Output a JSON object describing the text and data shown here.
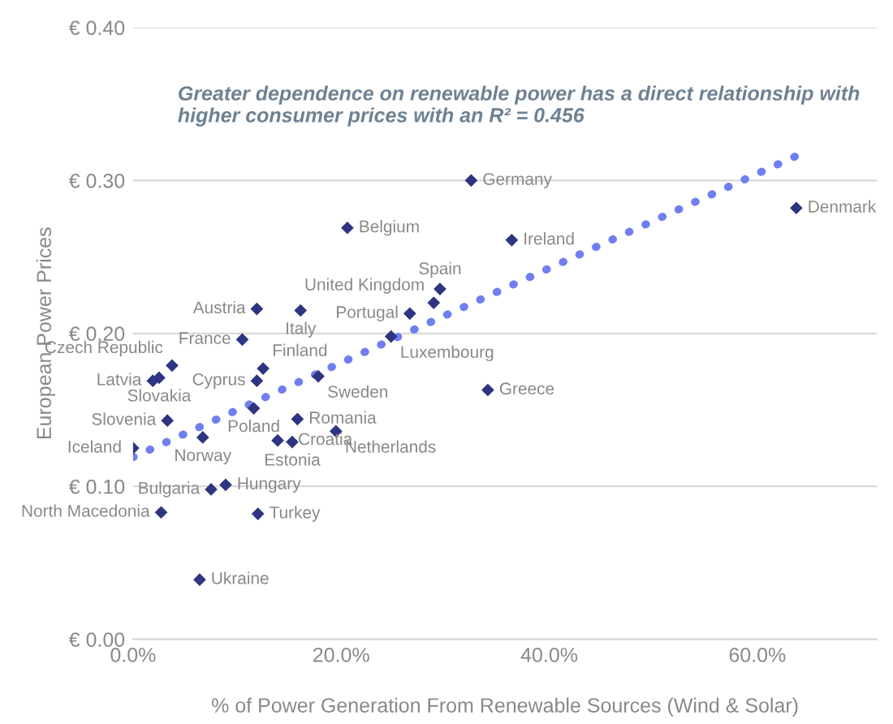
{
  "chart_data": {
    "type": "scatter",
    "xlabel": "% of Power Generation From Renewable Sources (Wind & Solar)",
    "ylabel": "European Power Prices",
    "annotations": [
      "Greater dependence on renewable power has a direct relationship with higher consumer prices with an R² = 0.456",
      {
        "text": "Germany",
        "x": 32.5,
        "y": 0.3
      },
      {
        "text": "Belgium",
        "x": 20.6,
        "y": 0.269
      },
      {
        "text": "Denmark",
        "x": 63.75,
        "y": 0.282
      },
      {
        "text": "Ireland",
        "x": 36.4,
        "y": 0.261
      },
      {
        "text": "Spain",
        "x": 29.5,
        "y": 0.229
      },
      {
        "text": "United Kingdom",
        "x": 28.9,
        "y": 0.22
      },
      {
        "text": "Portugal",
        "x": 26.6,
        "y": 0.213
      },
      {
        "text": "Luxembourg",
        "x": 24.8,
        "y": 0.198
      },
      {
        "text": "Austria",
        "x": 11.9,
        "y": 0.216
      },
      {
        "text": "Italy",
        "x": 16.1,
        "y": 0.215
      },
      {
        "text": "France",
        "x": 10.5,
        "y": 0.196
      },
      {
        "text": "Czech Republic",
        "x": 3.75,
        "y": 0.179
      },
      {
        "text": "Slovakia",
        "x": 2.5,
        "y": 0.171
      },
      {
        "text": "Finland",
        "x": 12.5,
        "y": 0.177
      },
      {
        "text": "Cyprus",
        "x": 11.9,
        "y": 0.169
      },
      {
        "text": "Sweden",
        "x": 17.8,
        "y": 0.172
      },
      {
        "text": "Greece",
        "x": 34.1,
        "y": 0.163
      },
      {
        "text": "Poland",
        "x": 11.6,
        "y": 0.151
      },
      {
        "text": "Slovenia",
        "x": 3.3,
        "y": 0.143
      },
      {
        "text": "Latvia",
        "x": 1.9,
        "y": 0.169
      },
      {
        "text": "Romania",
        "x": 15.8,
        "y": 0.144
      },
      {
        "text": "Norway",
        "x": 6.7,
        "y": 0.132
      },
      {
        "text": "Netherlands",
        "x": 19.5,
        "y": 0.136
      },
      {
        "text": "Estonia",
        "x": 15.3,
        "y": 0.129
      },
      {
        "text": "Croatia",
        "x": 13.9,
        "y": 0.13
      },
      {
        "text": "Iceland",
        "x": 0.0,
        "y": 0.125
      },
      {
        "text": "Hungary",
        "x": 8.9,
        "y": 0.101
      },
      {
        "text": "Bulgaria",
        "x": 7.5,
        "y": 0.098
      },
      {
        "text": "North Macedonia",
        "x": 2.7,
        "y": 0.083
      },
      {
        "text": "Turkey",
        "x": 12.0,
        "y": 0.082
      },
      {
        "text": "Ukraine",
        "x": 6.4,
        "y": 0.039
      }
    ],
    "series": [
      {
        "color": "#2e3580",
        "marker": "diamond",
        "x": [
          32.5,
          20.6,
          63.75,
          36.4,
          29.5,
          28.9,
          26.6,
          24.8,
          11.9,
          16.1,
          10.5,
          3.75,
          2.5,
          12.5,
          11.9,
          17.8,
          34.1,
          11.6,
          3.3,
          1.9,
          15.8,
          6.7,
          19.5,
          15.3,
          13.9,
          0.0,
          8.9,
          7.5,
          2.7,
          12.0,
          6.4
        ],
        "values": [
          0.3,
          0.269,
          0.282,
          0.261,
          0.229,
          0.22,
          0.213,
          0.198,
          0.216,
          0.215,
          0.196,
          0.179,
          0.171,
          0.177,
          0.169,
          0.172,
          0.163,
          0.151,
          0.143,
          0.169,
          0.144,
          0.132,
          0.136,
          0.129,
          0.13,
          0.125,
          0.101,
          0.098,
          0.083,
          0.082,
          0.039
        ]
      },
      {
        "type": "line",
        "color": "#6f7ff0",
        "line_style": "dotted",
        "marker": "none",
        "x": [
          0,
          63.75
        ],
        "values": [
          0.119,
          0.316
        ]
      }
    ],
    "xlim": [
      0,
      71.5
    ],
    "ylim": [
      0,
      0.4
    ],
    "xticks": [
      {
        "value": 0,
        "label": "0.0%"
      },
      {
        "value": 20,
        "label": "20.0%"
      },
      {
        "value": 40,
        "label": "40.0%"
      },
      {
        "value": 60,
        "label": "60.0%"
      }
    ],
    "yticks": [
      {
        "value": 0,
        "label": "€ 0.00"
      },
      {
        "value": 0.1,
        "label": "€ 0.10"
      },
      {
        "value": 0.2,
        "label": "€ 0.20"
      },
      {
        "value": 0.3,
        "label": "€ 0.30"
      },
      {
        "value": 0.4,
        "label": "€ 0.40"
      }
    ],
    "grid": "y",
    "legend": false
  }
}
